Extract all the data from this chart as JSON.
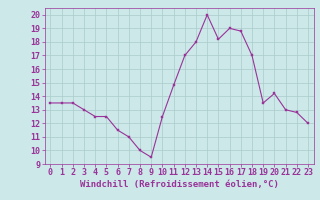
{
  "x": [
    0,
    1,
    2,
    3,
    4,
    5,
    6,
    7,
    8,
    9,
    10,
    11,
    12,
    13,
    14,
    15,
    16,
    17,
    18,
    19,
    20,
    21,
    22,
    23
  ],
  "y": [
    13.5,
    13.5,
    13.5,
    13.0,
    12.5,
    12.5,
    11.5,
    11.0,
    10.0,
    9.5,
    12.5,
    14.8,
    17.0,
    18.0,
    20.0,
    18.2,
    19.0,
    18.8,
    17.0,
    13.5,
    14.2,
    13.0,
    12.8,
    12.0
  ],
  "line_color": "#993399",
  "marker_color": "#993399",
  "bg_color": "#cce8e8",
  "grid_color": "#aacccc",
  "xlabel": "Windchill (Refroidissement éolien,°C)",
  "xlim": [
    -0.5,
    23.5
  ],
  "ylim": [
    9,
    20.5
  ],
  "yticks": [
    9,
    10,
    11,
    12,
    13,
    14,
    15,
    16,
    17,
    18,
    19,
    20
  ],
  "xticks": [
    0,
    1,
    2,
    3,
    4,
    5,
    6,
    7,
    8,
    9,
    10,
    11,
    12,
    13,
    14,
    15,
    16,
    17,
    18,
    19,
    20,
    21,
    22,
    23
  ],
  "xlabel_color": "#993399",
  "xlabel_fontsize": 6.5,
  "tick_fontsize": 6.0,
  "tick_color": "#993399",
  "line_width": 0.8,
  "marker_size": 2.0
}
